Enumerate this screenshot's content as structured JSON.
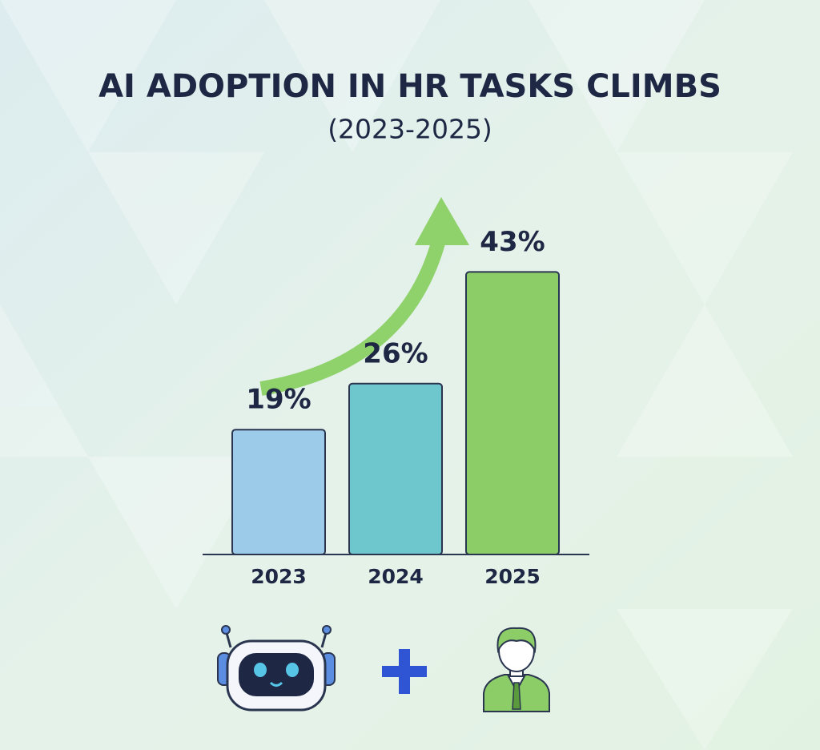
{
  "chart_data": {
    "type": "bar",
    "title": "AI ADOPTION IN HR TASKS CLIMBS",
    "subtitle": "(2023-2025)",
    "categories": [
      "2023",
      "2024",
      "2025"
    ],
    "values": [
      19,
      26,
      43
    ],
    "value_labels": [
      "19%",
      "26%",
      "43%"
    ],
    "colors": [
      "#9ccbea",
      "#6ec7cc",
      "#8dcd68"
    ]
  }
}
